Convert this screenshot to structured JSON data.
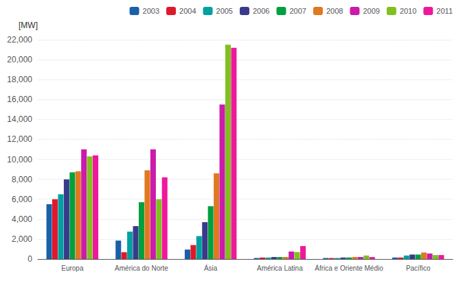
{
  "chart_data": {
    "type": "bar",
    "ylabel": "[MW]",
    "categories": [
      "Europa",
      "América do Norte",
      "Ásia",
      "América Latina",
      "África e Oriente Médio",
      "Pacífico"
    ],
    "series": [
      {
        "name": "2003",
        "color": "#1a5fa8",
        "values": [
          5500,
          1850,
          950,
          100,
          100,
          150
        ]
      },
      {
        "name": "2004",
        "color": "#e0192a",
        "values": [
          6000,
          680,
          1400,
          150,
          100,
          150
        ]
      },
      {
        "name": "2005",
        "color": "#00a0a0",
        "values": [
          6500,
          2750,
          2300,
          150,
          100,
          350
        ]
      },
      {
        "name": "2006",
        "color": "#3a3a8c",
        "values": [
          8000,
          3300,
          3700,
          200,
          150,
          450
        ]
      },
      {
        "name": "2007",
        "color": "#00a040",
        "values": [
          8700,
          5700,
          5300,
          200,
          150,
          450
        ]
      },
      {
        "name": "2008",
        "color": "#e07820",
        "values": [
          8800,
          8900,
          8600,
          200,
          200,
          650
        ]
      },
      {
        "name": "2009",
        "color": "#cc1aaa",
        "values": [
          11000,
          11000,
          15500,
          750,
          200,
          550
        ]
      },
      {
        "name": "2010",
        "color": "#80c020",
        "values": [
          10300,
          6000,
          21500,
          700,
          350,
          400
        ]
      },
      {
        "name": "2011",
        "color": "#f0189a",
        "values": [
          10400,
          8200,
          21200,
          1300,
          200,
          400
        ]
      }
    ],
    "ylim": [
      0,
      22000
    ],
    "yticks": [
      0,
      {
        "value": 2000,
        "label": "2,000"
      },
      {
        "value": 4000,
        "label": "4,000"
      },
      {
        "value": 6000,
        "label": "6,000"
      },
      {
        "value": 8000,
        "label": "8,000"
      },
      {
        "value": 10000,
        "label": "10,000"
      },
      {
        "value": 12000,
        "label": "12,000"
      },
      {
        "value": 14000,
        "label": "14,000"
      },
      {
        "value": 16000,
        "label": "16,000"
      },
      {
        "value": 18000,
        "label": "18,000"
      },
      {
        "value": 20000,
        "label": "20,000"
      },
      {
        "value": 22000,
        "label": "22,000"
      }
    ],
    "grid": true,
    "legend": "upper right"
  }
}
